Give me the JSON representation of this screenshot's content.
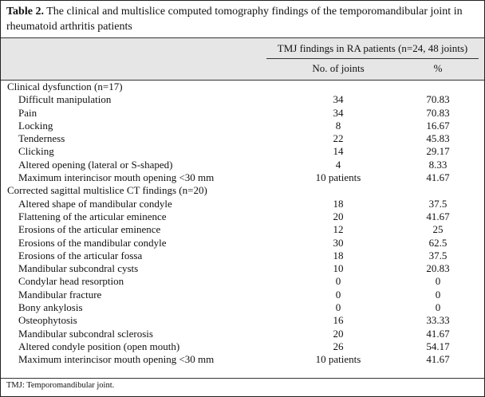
{
  "title": {
    "label": "Table 2.",
    "text": " The clinical and multislice computed tomography findings of the temporomandibular joint in rheumatoid arthritis patients"
  },
  "header": {
    "group": "TMJ findings in RA patients (n=24, 48 joints)",
    "col1": "No. of joints",
    "col2": "%"
  },
  "rows": [
    {
      "label": "Clinical dysfunction (n=17)",
      "section": true
    },
    {
      "label": "Difficult manipulation",
      "n": "34",
      "p": "70.83"
    },
    {
      "label": "Pain",
      "n": "34",
      "p": "70.83"
    },
    {
      "label": "Locking",
      "n": "8",
      "p": "16.67"
    },
    {
      "label": "Tenderness",
      "n": "22",
      "p": "45.83"
    },
    {
      "label": "Clicking",
      "n": "14",
      "p": "29.17"
    },
    {
      "label": "Altered opening (lateral or S-shaped)",
      "n": "4",
      "p": "8.33"
    },
    {
      "label": "Maximum interincisor mouth opening <30 mm",
      "n": "10 patients",
      "p": "41.67"
    },
    {
      "label": "Corrected sagittal multislice CT findings (n=20)",
      "section": true
    },
    {
      "label": "Altered shape of mandibular condyle",
      "n": "18",
      "p": "37.5"
    },
    {
      "label": "Flattening of the articular eminence",
      "n": "20",
      "p": "41.67"
    },
    {
      "label": "Erosions of the articular eminence",
      "n": "12",
      "p": "25"
    },
    {
      "label": "Erosions of the mandibular condyle",
      "n": "30",
      "p": "62.5"
    },
    {
      "label": "Erosions of the articular fossa",
      "n": "18",
      "p": "37.5"
    },
    {
      "label": "Mandibular subcondral cysts",
      "n": "10",
      "p": "20.83"
    },
    {
      "label": "Condylar head resorption",
      "n": "0",
      "p": "0"
    },
    {
      "label": "Mandibular fracture",
      "n": "0",
      "p": "0"
    },
    {
      "label": "Bony ankylosis",
      "n": "0",
      "p": "0"
    },
    {
      "label": "Osteophytosis",
      "n": "16",
      "p": "33.33"
    },
    {
      "label": "Mandibular subcondral sclerosis",
      "n": "20",
      "p": "41.67"
    },
    {
      "label": "Altered condyle position (open mouth)",
      "n": "26",
      "p": "54.17"
    },
    {
      "label": "Maximum interincisor mouth opening <30 mm",
      "n": "10 patients",
      "p": "41.67"
    }
  ],
  "footnote": "TMJ: Temporomandibular joint."
}
